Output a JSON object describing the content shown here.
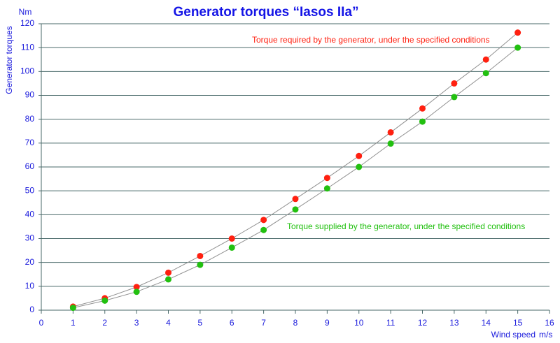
{
  "chart_data": {
    "type": "scatter",
    "title": "Generator torques “Iasos IIa”",
    "y_label": "Generator torques",
    "y_unit": "Nm",
    "x_label": "Wind speed",
    "x_unit": "m/s",
    "x": [
      1,
      2,
      3,
      4,
      5,
      6,
      7,
      8,
      9,
      10,
      11,
      12,
      13,
      14,
      15
    ],
    "series": [
      {
        "name": "Torque required by the generator, under the specified conditions",
        "color": "#ff2010",
        "values": [
          1.5,
          5,
          9.7,
          15.7,
          22.7,
          30,
          37.8,
          46.6,
          55.4,
          64.6,
          74.5,
          84.5,
          95,
          105,
          116.3
        ]
      },
      {
        "name": "Torque supplied by the generator, under the specified conditions",
        "color": "#22c010",
        "values": [
          1,
          4,
          7.7,
          12.9,
          19,
          26.2,
          33.6,
          42.2,
          51,
          60,
          69.8,
          79,
          89.3,
          99.3,
          110
        ]
      }
    ],
    "xlim": [
      0,
      16
    ],
    "xticks": [
      0,
      1,
      2,
      3,
      4,
      5,
      6,
      7,
      8,
      9,
      10,
      11,
      12,
      13,
      14,
      15,
      16
    ],
    "ylim": [
      0,
      120
    ],
    "yticks": [
      0,
      10,
      20,
      30,
      40,
      50,
      60,
      70,
      80,
      90,
      100,
      110,
      120
    ],
    "grid": true,
    "line_color": "#909090"
  }
}
